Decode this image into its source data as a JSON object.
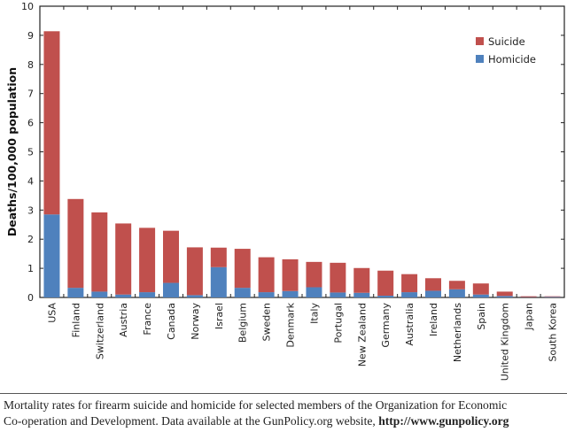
{
  "chart_data": {
    "type": "bar",
    "stacked": true,
    "title": "",
    "xlabel": "",
    "ylabel": "Deaths/100,000 population",
    "ylim": [
      0,
      10
    ],
    "yticks": [
      "0",
      "1",
      "2",
      "3",
      "4",
      "5",
      "6",
      "7",
      "8",
      "9",
      "10"
    ],
    "grid": false,
    "legend_position": "top-right",
    "categories": [
      "USA",
      "Finland",
      "Switzerland",
      "Austria",
      "France",
      "Canada",
      "Norway",
      "Israel",
      "Belgium",
      "Sweden",
      "Denmark",
      "Italy",
      "Portugal",
      "New Zealand",
      "Germany",
      "Australia",
      "Ireland",
      "Netherlands",
      "Spain",
      "United Kingdom",
      "Japan",
      "South Korea"
    ],
    "series": [
      {
        "name": "Homicide",
        "color": "#4f81bd",
        "values": [
          2.85,
          0.33,
          0.2,
          0.1,
          0.18,
          0.5,
          0.08,
          1.04,
          0.33,
          0.18,
          0.22,
          0.35,
          0.17,
          0.16,
          0.06,
          0.18,
          0.23,
          0.28,
          0.1,
          0.05,
          0.01,
          0.02
        ]
      },
      {
        "name": "Suicide",
        "color": "#c0504d",
        "values": [
          6.29,
          3.05,
          2.72,
          2.44,
          2.21,
          1.79,
          1.64,
          0.67,
          1.34,
          1.2,
          1.09,
          0.87,
          1.02,
          0.85,
          0.86,
          0.62,
          0.43,
          0.29,
          0.38,
          0.15,
          0.03,
          0.02
        ]
      }
    ],
    "legend": [
      "Suicide",
      "Homicide"
    ]
  },
  "caption": {
    "text": "Mortality rates for firearm suicide and homicide for selected members of the Organization for Economic Co-operation and Development. Data available at the GunPolicy.org website,",
    "line1": "Mortality rates for firearm suicide and homicide for selected members of the Organization for Economic",
    "line2": "Co-operation and Development. Data available at the GunPolicy.org website,",
    "url": "http://www.gunpolicy.org"
  }
}
